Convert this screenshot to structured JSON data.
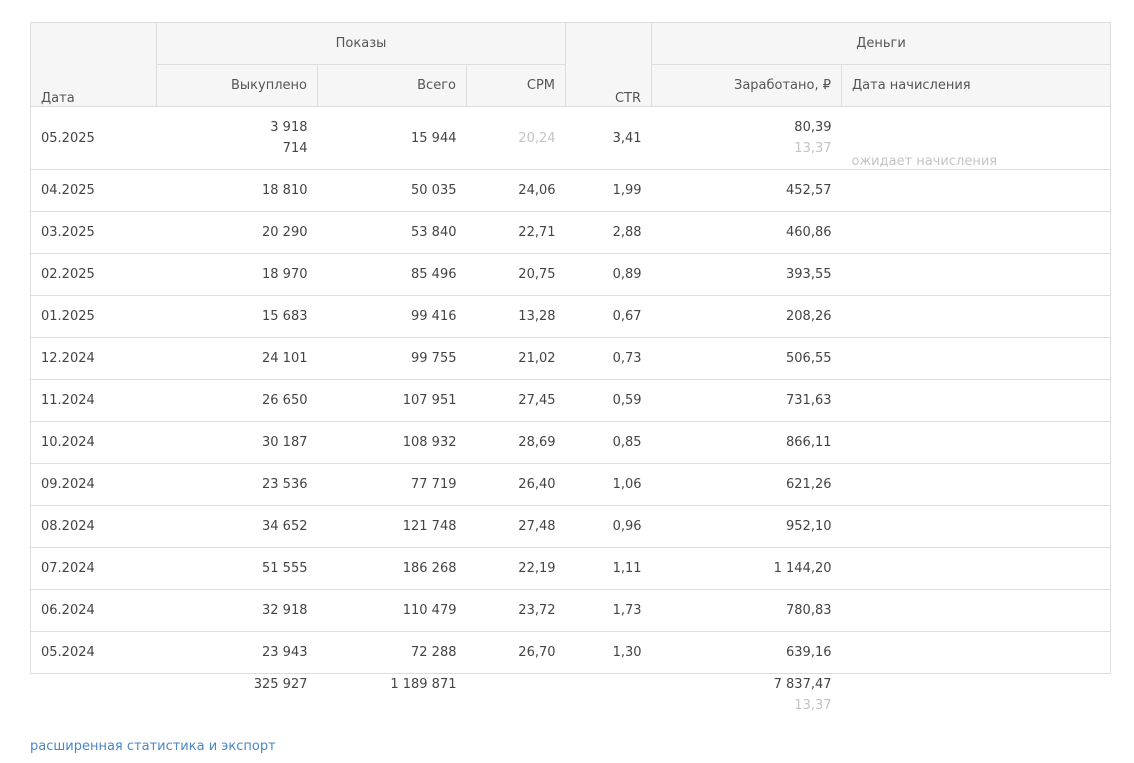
{
  "headers": {
    "date": "Дата",
    "impressions_group": "Показы",
    "bought": "Выкуплено",
    "total": "Всего",
    "cpm": "CPM",
    "ctr": "CTR",
    "money_group": "Деньги",
    "earned": "Заработано, ₽",
    "accrual_date": "Дата начисления"
  },
  "first_row": {
    "date": "05.2025",
    "bought_1": "3 918",
    "bought_2": "714",
    "total": "15 944",
    "cpm": "20,24",
    "ctr": "3,41",
    "earned_1": "80,39",
    "earned_2": "13,37",
    "accrual": "ожидает начисления"
  },
  "rows": [
    {
      "date": "04.2025",
      "bought": "18 810",
      "total": "50 035",
      "cpm": "24,06",
      "ctr": "1,99",
      "earned": "452,57"
    },
    {
      "date": "03.2025",
      "bought": "20 290",
      "total": "53 840",
      "cpm": "22,71",
      "ctr": "2,88",
      "earned": "460,86"
    },
    {
      "date": "02.2025",
      "bought": "18 970",
      "total": "85 496",
      "cpm": "20,75",
      "ctr": "0,89",
      "earned": "393,55"
    },
    {
      "date": "01.2025",
      "bought": "15 683",
      "total": "99 416",
      "cpm": "13,28",
      "ctr": "0,67",
      "earned": "208,26"
    },
    {
      "date": "12.2024",
      "bought": "24 101",
      "total": "99 755",
      "cpm": "21,02",
      "ctr": "0,73",
      "earned": "506,55"
    },
    {
      "date": "11.2024",
      "bought": "26 650",
      "total": "107 951",
      "cpm": "27,45",
      "ctr": "0,59",
      "earned": "731,63"
    },
    {
      "date": "10.2024",
      "bought": "30 187",
      "total": "108 932",
      "cpm": "28,69",
      "ctr": "0,85",
      "earned": "866,11"
    },
    {
      "date": "09.2024",
      "bought": "23 536",
      "total": "77 719",
      "cpm": "26,40",
      "ctr": "1,06",
      "earned": "621,26"
    },
    {
      "date": "08.2024",
      "bought": "34 652",
      "total": "121 748",
      "cpm": "27,48",
      "ctr": "0,96",
      "earned": "952,10"
    },
    {
      "date": "07.2024",
      "bought": "51 555",
      "total": "186 268",
      "cpm": "22,19",
      "ctr": "1,11",
      "earned": "1 144,20"
    },
    {
      "date": "06.2024",
      "bought": "32 918",
      "total": "110 479",
      "cpm": "23,72",
      "ctr": "1,73",
      "earned": "780,83"
    },
    {
      "date": "05.2024",
      "bought": "23 943",
      "total": "72 288",
      "cpm": "26,70",
      "ctr": "1,30",
      "earned": "639,16"
    }
  ],
  "totals": {
    "bought": "325 927",
    "total": "1 189 871",
    "earned": "7 837,47",
    "pending": "13,37"
  },
  "link": {
    "label": "расширенная статистика и экспорт"
  }
}
